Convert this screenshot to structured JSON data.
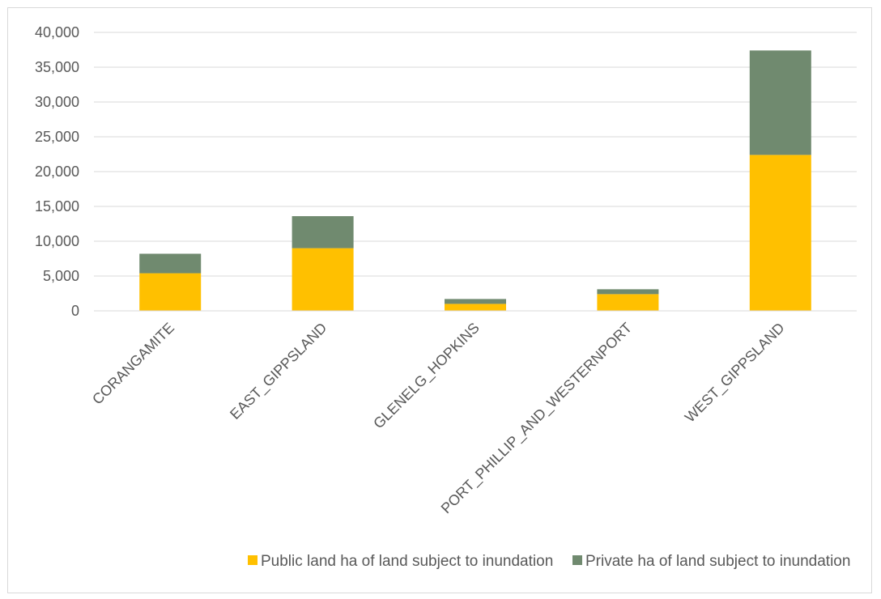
{
  "chart_data": {
    "type": "bar",
    "stacked": true,
    "categories": [
      "CORANGAMITE",
      "EAST_GIPPSLAND",
      "GLENELG_HOPKINS",
      "PORT_PHILLIP_AND_WESTERNPORT",
      "WEST_GIPPSLAND"
    ],
    "series": [
      {
        "name": "Public land ha of land subject to inundation",
        "color": "#ffc000",
        "values": [
          5400,
          9000,
          1000,
          2400,
          22400
        ]
      },
      {
        "name": "Private ha of land subject to inundation",
        "color": "#708a6f",
        "values": [
          2800,
          4600,
          700,
          700,
          15000
        ]
      }
    ],
    "ylim": [
      0,
      40000
    ],
    "yticks": [
      "0",
      "5,000",
      "10,000",
      "15,000",
      "20,000",
      "25,000",
      "30,000",
      "35,000",
      "40,000"
    ],
    "ytick_values": [
      0,
      5000,
      10000,
      15000,
      20000,
      25000,
      30000,
      35000,
      40000
    ],
    "grid": true,
    "legend_position": "bottom"
  }
}
